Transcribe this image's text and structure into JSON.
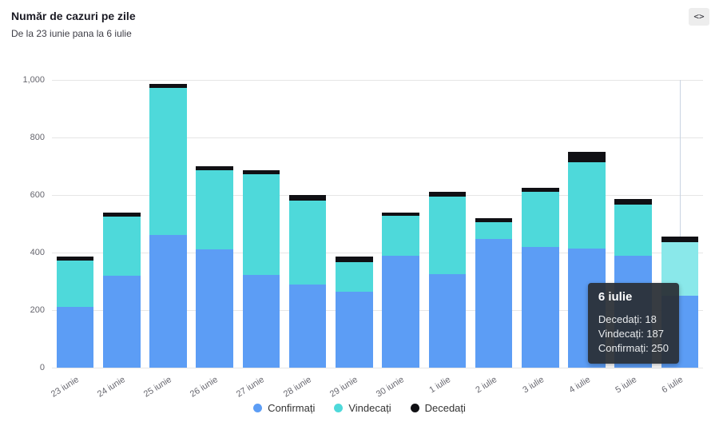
{
  "header": {
    "title": "Număr de cazuri pe zile",
    "subtitle": "De la 23 iunie pana la 6 iulie",
    "embed_button_label": "<>"
  },
  "legend": [
    {
      "label": "Confirmați",
      "color": "#5c9df5"
    },
    {
      "label": "Vindecați",
      "color": "#4ed9da"
    },
    {
      "label": "Decedați",
      "color": "#101014"
    }
  ],
  "tooltip": {
    "title": "6 iulie",
    "lines": [
      {
        "label": "Decedați",
        "value": 18
      },
      {
        "label": "Vindecați",
        "value": 187
      },
      {
        "label": "Confirmați",
        "value": 250
      }
    ]
  },
  "chart_data": {
    "type": "bar",
    "stacked": true,
    "title": "Număr de cazuri pe zile",
    "xlabel": "",
    "ylabel": "",
    "ylim": [
      0,
      1000
    ],
    "grid": true,
    "legend_position": "bottom",
    "highlighted_category": "6 iulie",
    "categories": [
      "23 iunie",
      "24 iunie",
      "25 iunie",
      "26 iunie",
      "27 iunie",
      "28 iunie",
      "29 iunie",
      "30 iunie",
      "1 iulie",
      "2 iulie",
      "3 iulie",
      "4 iulie",
      "5 iulie",
      "6 iulie"
    ],
    "yticks": [
      {
        "value": 0,
        "label": "0"
      },
      {
        "value": 200,
        "label": "200"
      },
      {
        "value": 400,
        "label": "400"
      },
      {
        "value": 600,
        "label": "600"
      },
      {
        "value": 800,
        "label": "800"
      },
      {
        "value": 1000,
        "label": "1,000"
      }
    ],
    "series": [
      {
        "name": "Confirmați",
        "color": "#5c9df5",
        "values": [
          212,
          320,
          460,
          410,
          323,
          290,
          265,
          388,
          325,
          447,
          420,
          413,
          390,
          250
        ]
      },
      {
        "name": "Vindecați",
        "color": "#4ed9da",
        "highlight_color": "#8ae8ea",
        "values": [
          160,
          205,
          513,
          277,
          350,
          290,
          103,
          140,
          270,
          60,
          192,
          302,
          177,
          187
        ]
      },
      {
        "name": "Decedați",
        "color": "#101014",
        "values": [
          13,
          15,
          12,
          13,
          12,
          20,
          17,
          12,
          15,
          13,
          13,
          35,
          18,
          18
        ]
      }
    ]
  }
}
